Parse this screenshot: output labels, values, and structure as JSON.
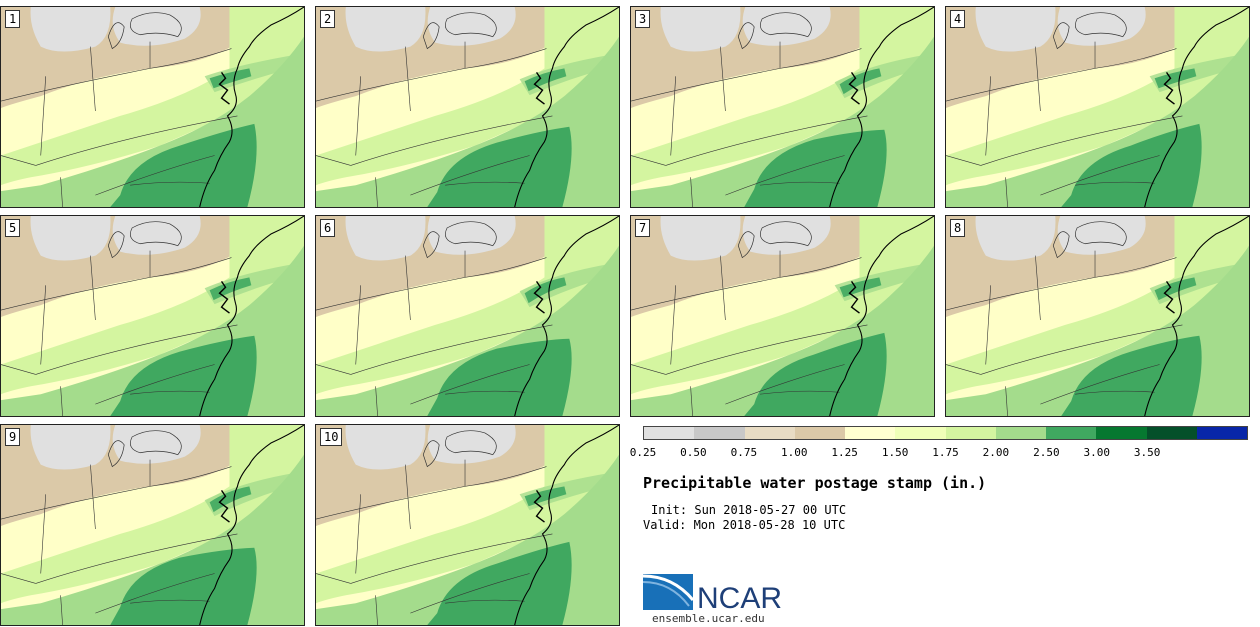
{
  "panels": [
    {
      "label": "1"
    },
    {
      "label": "2"
    },
    {
      "label": "3"
    },
    {
      "label": "4"
    },
    {
      "label": "5"
    },
    {
      "label": "6"
    },
    {
      "label": "7"
    },
    {
      "label": "8"
    },
    {
      "label": "9"
    },
    {
      "label": "10"
    }
  ],
  "colorbar": {
    "colors": [
      "#e0e0e0",
      "#c8c8c8",
      "#e8dcc4",
      "#dbc9a8",
      "#ffffd0",
      "#f0ffb8",
      "#d4f5a0",
      "#a4dc8c",
      "#40a860",
      "#067830",
      "#04502a",
      "#0826a8"
    ],
    "ticks": [
      "0.25",
      "0.50",
      "0.75",
      "1.00",
      "1.25",
      "1.50",
      "1.75",
      "2.00",
      "2.50",
      "3.00",
      "3.50"
    ]
  },
  "title": "Precipitable water postage stamp (in.)",
  "init_line": "Init: Sun 2018-05-27 00 UTC",
  "valid_line": "Valid: Mon 2018-05-28 10 UTC",
  "logo_text": "NCAR",
  "site": "ensemble.ucar.edu",
  "colors": {
    "tan": "#dbc9a8",
    "gray": "#e0e0e0",
    "lightyellow": "#ffffc8",
    "lightgreen": "#d4f5a0",
    "midgreen": "#a4dc8c",
    "green": "#40a860",
    "ncar_blue": "#1870b8"
  }
}
